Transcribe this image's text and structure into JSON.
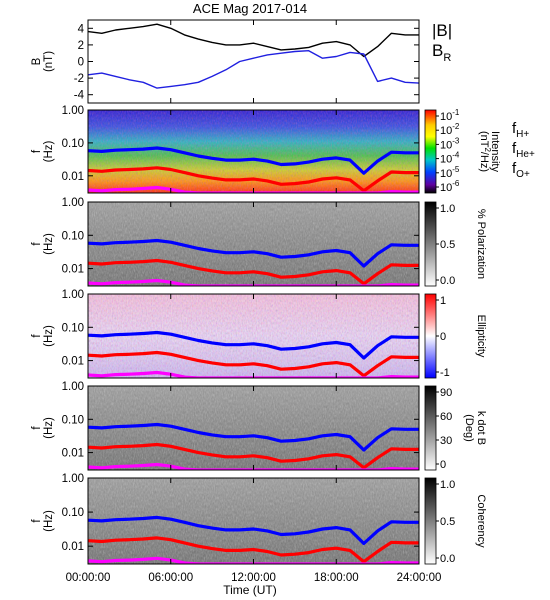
{
  "title": "ACE Mag 2017-014",
  "x_axis": {
    "label": "Time (UT)",
    "range_hours": [
      0,
      24
    ],
    "ticks": [
      {
        "hour": 0,
        "label": "00:00:00"
      },
      {
        "hour": 6,
        "label": "06:00:00"
      },
      {
        "hour": 12,
        "label": "12:00:00"
      },
      {
        "hour": 18,
        "label": "18:00:00"
      },
      {
        "hour": 24,
        "label": "24:00:00"
      }
    ]
  },
  "colors": {
    "B": "#000000",
    "BR": "#2020e0",
    "H": "#0000ff",
    "He": "#ff0000",
    "O": "#ff00ff"
  },
  "legend_top": {
    "b_label": "|B|",
    "br_label": "B",
    "br_sub": "R"
  },
  "legend_gyro": [
    {
      "base": "f",
      "sub": "H+",
      "color": "#2020c0"
    },
    {
      "base": "f",
      "sub": "He+",
      "color": "#ff0000"
    },
    {
      "base": "f",
      "sub": "O+",
      "color": "#ff00ff"
    }
  ],
  "chart_data": [
    {
      "type": "line",
      "panel": "field",
      "ylabel": "B",
      "yunit": "(nT)",
      "ylim": [
        -5,
        5
      ],
      "yticks": [
        {
          "v": 4,
          "label": "4"
        },
        {
          "v": 2,
          "label": "2"
        },
        {
          "v": 0,
          "label": "0"
        },
        {
          "v": -2,
          "label": "-2"
        },
        {
          "v": -4,
          "label": "-4"
        }
      ],
      "series": [
        {
          "name": "|B|",
          "color": "#000000",
          "x": [
            0,
            1,
            2,
            3,
            4,
            5,
            6,
            7,
            8,
            9,
            10,
            11,
            12,
            13,
            14,
            15,
            16,
            17,
            18,
            19,
            20,
            21,
            22,
            23,
            24
          ],
          "y": [
            3.6,
            3.4,
            3.8,
            4.0,
            4.2,
            4.5,
            4.0,
            3.2,
            2.7,
            2.3,
            2.0,
            2.0,
            2.2,
            1.8,
            1.4,
            1.5,
            1.7,
            2.2,
            2.4,
            2.0,
            0.6,
            1.8,
            3.4,
            3.2,
            3.2
          ]
        },
        {
          "name": "B",
          "sub": "R",
          "color": "#2020e0",
          "x": [
            0,
            1,
            2,
            3,
            4,
            5,
            6,
            7,
            8,
            9,
            10,
            11,
            12,
            13,
            14,
            15,
            16,
            17,
            18,
            19,
            20,
            21,
            22,
            23,
            24
          ],
          "y": [
            -1.6,
            -1.4,
            -1.8,
            -2.2,
            -2.5,
            -3.2,
            -3.0,
            -2.8,
            -2.5,
            -1.8,
            -1.0,
            0.0,
            0.4,
            0.8,
            1.0,
            1.2,
            1.3,
            0.4,
            0.6,
            1.1,
            0.9,
            -2.4,
            -2.0,
            -2.5,
            -2.6
          ]
        }
      ]
    },
    {
      "type": "heatmap",
      "panel": "intensity",
      "ylabel": "f",
      "yunit": "(Hz)",
      "yscale": "log",
      "ylim": [
        0.003,
        1.0
      ],
      "yticks": [
        {
          "v": 1.0,
          "label": "1.00"
        },
        {
          "v": 0.1,
          "label": "0.10"
        },
        {
          "v": 0.01,
          "label": "0.01"
        }
      ],
      "colorbar": {
        "label": "Intensity",
        "unit_lines": [
          "(nT",
          "2",
          "/Hz)"
        ],
        "scale": "rainbow",
        "ticks": [
          {
            "label": "10",
            "exp": "-1"
          },
          {
            "label": "10",
            "exp": "-2"
          },
          {
            "label": "10",
            "exp": "-3"
          },
          {
            "label": "10",
            "exp": "-4"
          },
          {
            "label": "10",
            "exp": "-5"
          },
          {
            "label": "10",
            "exp": "-6"
          }
        ]
      }
    },
    {
      "type": "heatmap",
      "panel": "polarization",
      "ylabel": "f",
      "yunit": "(Hz)",
      "yscale": "log",
      "ylim": [
        0.003,
        1.0
      ],
      "yticks": [
        {
          "v": 1.0,
          "label": "1.00"
        },
        {
          "v": 0.1,
          "label": "0.10"
        },
        {
          "v": 0.01,
          "label": "0.01"
        }
      ],
      "colorbar": {
        "label": "% Polarization",
        "scale": "gray",
        "ticks": [
          {
            "label": "1.0"
          },
          {
            "label": "0.5"
          },
          {
            "label": "0.0"
          }
        ]
      }
    },
    {
      "type": "heatmap",
      "panel": "ellipticity",
      "ylabel": "f",
      "yunit": "(Hz)",
      "yscale": "log",
      "ylim": [
        0.003,
        1.0
      ],
      "yticks": [
        {
          "v": 1.0,
          "label": "1.00"
        },
        {
          "v": 0.1,
          "label": "0.10"
        },
        {
          "v": 0.01,
          "label": "0.01"
        }
      ],
      "colorbar": {
        "label": "Ellipticity",
        "scale": "bwr",
        "ticks": [
          {
            "label": "1"
          },
          {
            "label": "0"
          },
          {
            "label": "-1"
          }
        ]
      }
    },
    {
      "type": "heatmap",
      "panel": "kdotb",
      "ylabel": "f",
      "yunit": "(Hz)",
      "yscale": "log",
      "ylim": [
        0.003,
        1.0
      ],
      "yticks": [
        {
          "v": 1.0,
          "label": "1.00"
        },
        {
          "v": 0.1,
          "label": "0.10"
        },
        {
          "v": 0.01,
          "label": "0.01"
        }
      ],
      "colorbar": {
        "label": "k dot B",
        "unit": "(Deg)",
        "scale": "gray",
        "ticks": [
          {
            "label": "90"
          },
          {
            "label": "60"
          },
          {
            "label": "30"
          },
          {
            "label": "0"
          }
        ]
      }
    },
    {
      "type": "heatmap",
      "panel": "coherency",
      "ylabel": "f",
      "yunit": "(Hz)",
      "yscale": "log",
      "ylim": [
        0.003,
        1.0
      ],
      "yticks": [
        {
          "v": 1.0,
          "label": "1.00"
        },
        {
          "v": 0.1,
          "label": "0.10"
        },
        {
          "v": 0.01,
          "label": "0.01"
        }
      ],
      "colorbar": {
        "label": "Coherency",
        "scale": "gray",
        "ticks": [
          {
            "label": "1.0"
          },
          {
            "label": "0.5"
          },
          {
            "label": "0.0"
          }
        ]
      }
    }
  ],
  "gyro_lines": {
    "x": [
      0,
      1,
      2,
      3,
      4,
      5,
      6,
      7,
      8,
      9,
      10,
      11,
      12,
      13,
      14,
      15,
      16,
      17,
      18,
      19,
      20,
      21,
      22,
      23,
      24
    ],
    "fH": [
      0.058,
      0.055,
      0.06,
      0.062,
      0.065,
      0.07,
      0.062,
      0.05,
      0.04,
      0.034,
      0.03,
      0.03,
      0.032,
      0.028,
      0.022,
      0.023,
      0.026,
      0.032,
      0.035,
      0.03,
      0.012,
      0.028,
      0.052,
      0.05,
      0.05
    ],
    "fHe": [
      0.0145,
      0.0137,
      0.015,
      0.0155,
      0.0162,
      0.0175,
      0.0155,
      0.0125,
      0.01,
      0.0085,
      0.0075,
      0.0075,
      0.008,
      0.007,
      0.0055,
      0.0058,
      0.0065,
      0.008,
      0.0087,
      0.0075,
      0.0035,
      0.007,
      0.013,
      0.0125,
      0.0125
    ],
    "fO": [
      0.0037,
      0.0035,
      0.0038,
      0.0039,
      0.0041,
      0.0044,
      0.0039,
      0.0032,
      0.003,
      0.003,
      0.003,
      0.003,
      0.003,
      0.003,
      0.003,
      0.003,
      0.003,
      0.003,
      0.003,
      0.003,
      0.003,
      0.003,
      0.0033,
      0.0032,
      0.0032
    ]
  }
}
